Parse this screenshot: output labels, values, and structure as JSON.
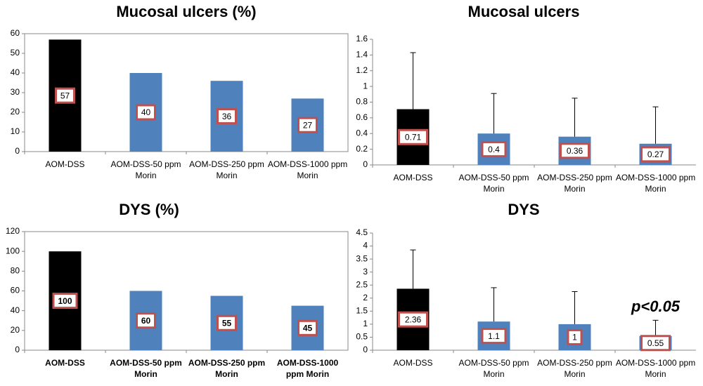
{
  "chart_data": [
    {
      "type": "bar",
      "title": "Mucosal ulcers (%)",
      "categories": [
        "AOM-DSS",
        "AOM-DSS-50 ppm Morin",
        "AOM-DSS-250 ppm Morin",
        "AOM-DSS-1000 ppm Morin"
      ],
      "values": [
        57,
        40,
        36,
        27
      ],
      "colors": [
        "#000000",
        "#4f81bd",
        "#4f81bd",
        "#4f81bd"
      ],
      "label_border": "#c0504d",
      "ylim": [
        0,
        60
      ],
      "yticks": [
        0,
        10,
        20,
        30,
        40,
        50,
        60
      ]
    },
    {
      "type": "bar",
      "title": "Mucosal ulcers",
      "categories": [
        "AOM-DSS",
        "AOM-DSS-50 ppm Morin",
        "AOM-DSS-250 ppm Morin",
        "AOM-DSS-1000 ppm Morin"
      ],
      "values": [
        0.71,
        0.4,
        0.36,
        0.27
      ],
      "errors": [
        0.72,
        0.51,
        0.49,
        0.47
      ],
      "colors": [
        "#000000",
        "#4f81bd",
        "#4f81bd",
        "#4f81bd"
      ],
      "label_border": "#c0504d",
      "ylim": [
        0,
        1.6
      ],
      "yticks": [
        0,
        0.2,
        0.4,
        0.6,
        0.8,
        1,
        1.2,
        1.4,
        1.6
      ]
    },
    {
      "type": "bar",
      "title": "DYS (%)",
      "categories": [
        "AOM-DSS",
        "AOM-DSS-50 ppm Morin",
        "AOM-DSS-250 ppm Morin",
        "AOM-DSS-1000 ppm Morin"
      ],
      "values": [
        100,
        60,
        55,
        45
      ],
      "colors": [
        "#000000",
        "#4f81bd",
        "#4f81bd",
        "#4f81bd"
      ],
      "label_border": "#c0504d",
      "ylim": [
        0,
        120
      ],
      "yticks": [
        0,
        20,
        40,
        60,
        80,
        100,
        120
      ]
    },
    {
      "type": "bar",
      "title": "DYS",
      "categories": [
        "AOM-DSS",
        "AOM-DSS-50 ppm Morin",
        "AOM-DSS-250 ppm Morin",
        "AOM-DSS-1000 ppm Morin"
      ],
      "values": [
        2.36,
        1.1,
        1,
        0.55
      ],
      "errors": [
        1.49,
        1.3,
        1.25,
        0.6
      ],
      "colors": [
        "#000000",
        "#4f81bd",
        "#4f81bd",
        "#4f81bd"
      ],
      "label_border": "#c0504d",
      "ylim": [
        0,
        4.5
      ],
      "yticks": [
        0,
        0.5,
        1,
        1.5,
        2,
        2.5,
        3,
        3.5,
        4,
        4.5
      ],
      "annotation": "p<0.05"
    }
  ]
}
